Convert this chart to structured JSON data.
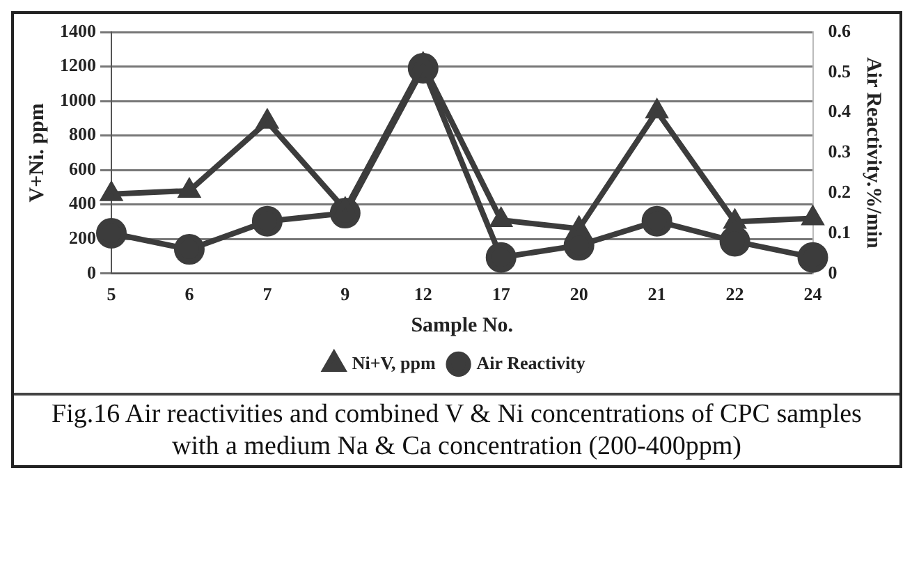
{
  "chart_data": {
    "type": "line",
    "xlabel": "Sample No.",
    "ylabel": "V+Ni. ppm",
    "y2label": "Air Reactivity.%/min",
    "categories": [
      "5",
      "6",
      "7",
      "9",
      "12",
      "17",
      "20",
      "21",
      "22",
      "24"
    ],
    "series": [
      {
        "name": "Ni+V, ppm",
        "color": "#3c3c3c",
        "marker": "triangle",
        "values": [
          460,
          480,
          880,
          370,
          1210,
          310,
          260,
          940,
          300,
          320
        ]
      },
      {
        "name": "Air Reactivity",
        "color": "#3c3c3c",
        "marker": "circle",
        "axis": "y2",
        "values": [
          0.1,
          0.06,
          0.13,
          0.15,
          0.51,
          0.04,
          0.07,
          0.13,
          0.08,
          0.04
        ]
      }
    ],
    "ylim": [
      0,
      1400
    ],
    "yticks": [
      0,
      200,
      400,
      600,
      800,
      1000,
      1200,
      1400
    ],
    "y2lim": [
      0,
      0.6
    ],
    "y2ticks": [
      0,
      0.1,
      0.2,
      0.3,
      0.4,
      0.5,
      0.6
    ],
    "grid": "y",
    "legend": "bottom",
    "line_style": "solid",
    "annotations": [
      "Fig.16 Air reactivities and combined V & Ni concentrations of CPC samples with a medium Na & Ca concentration (200-400ppm)"
    ]
  }
}
